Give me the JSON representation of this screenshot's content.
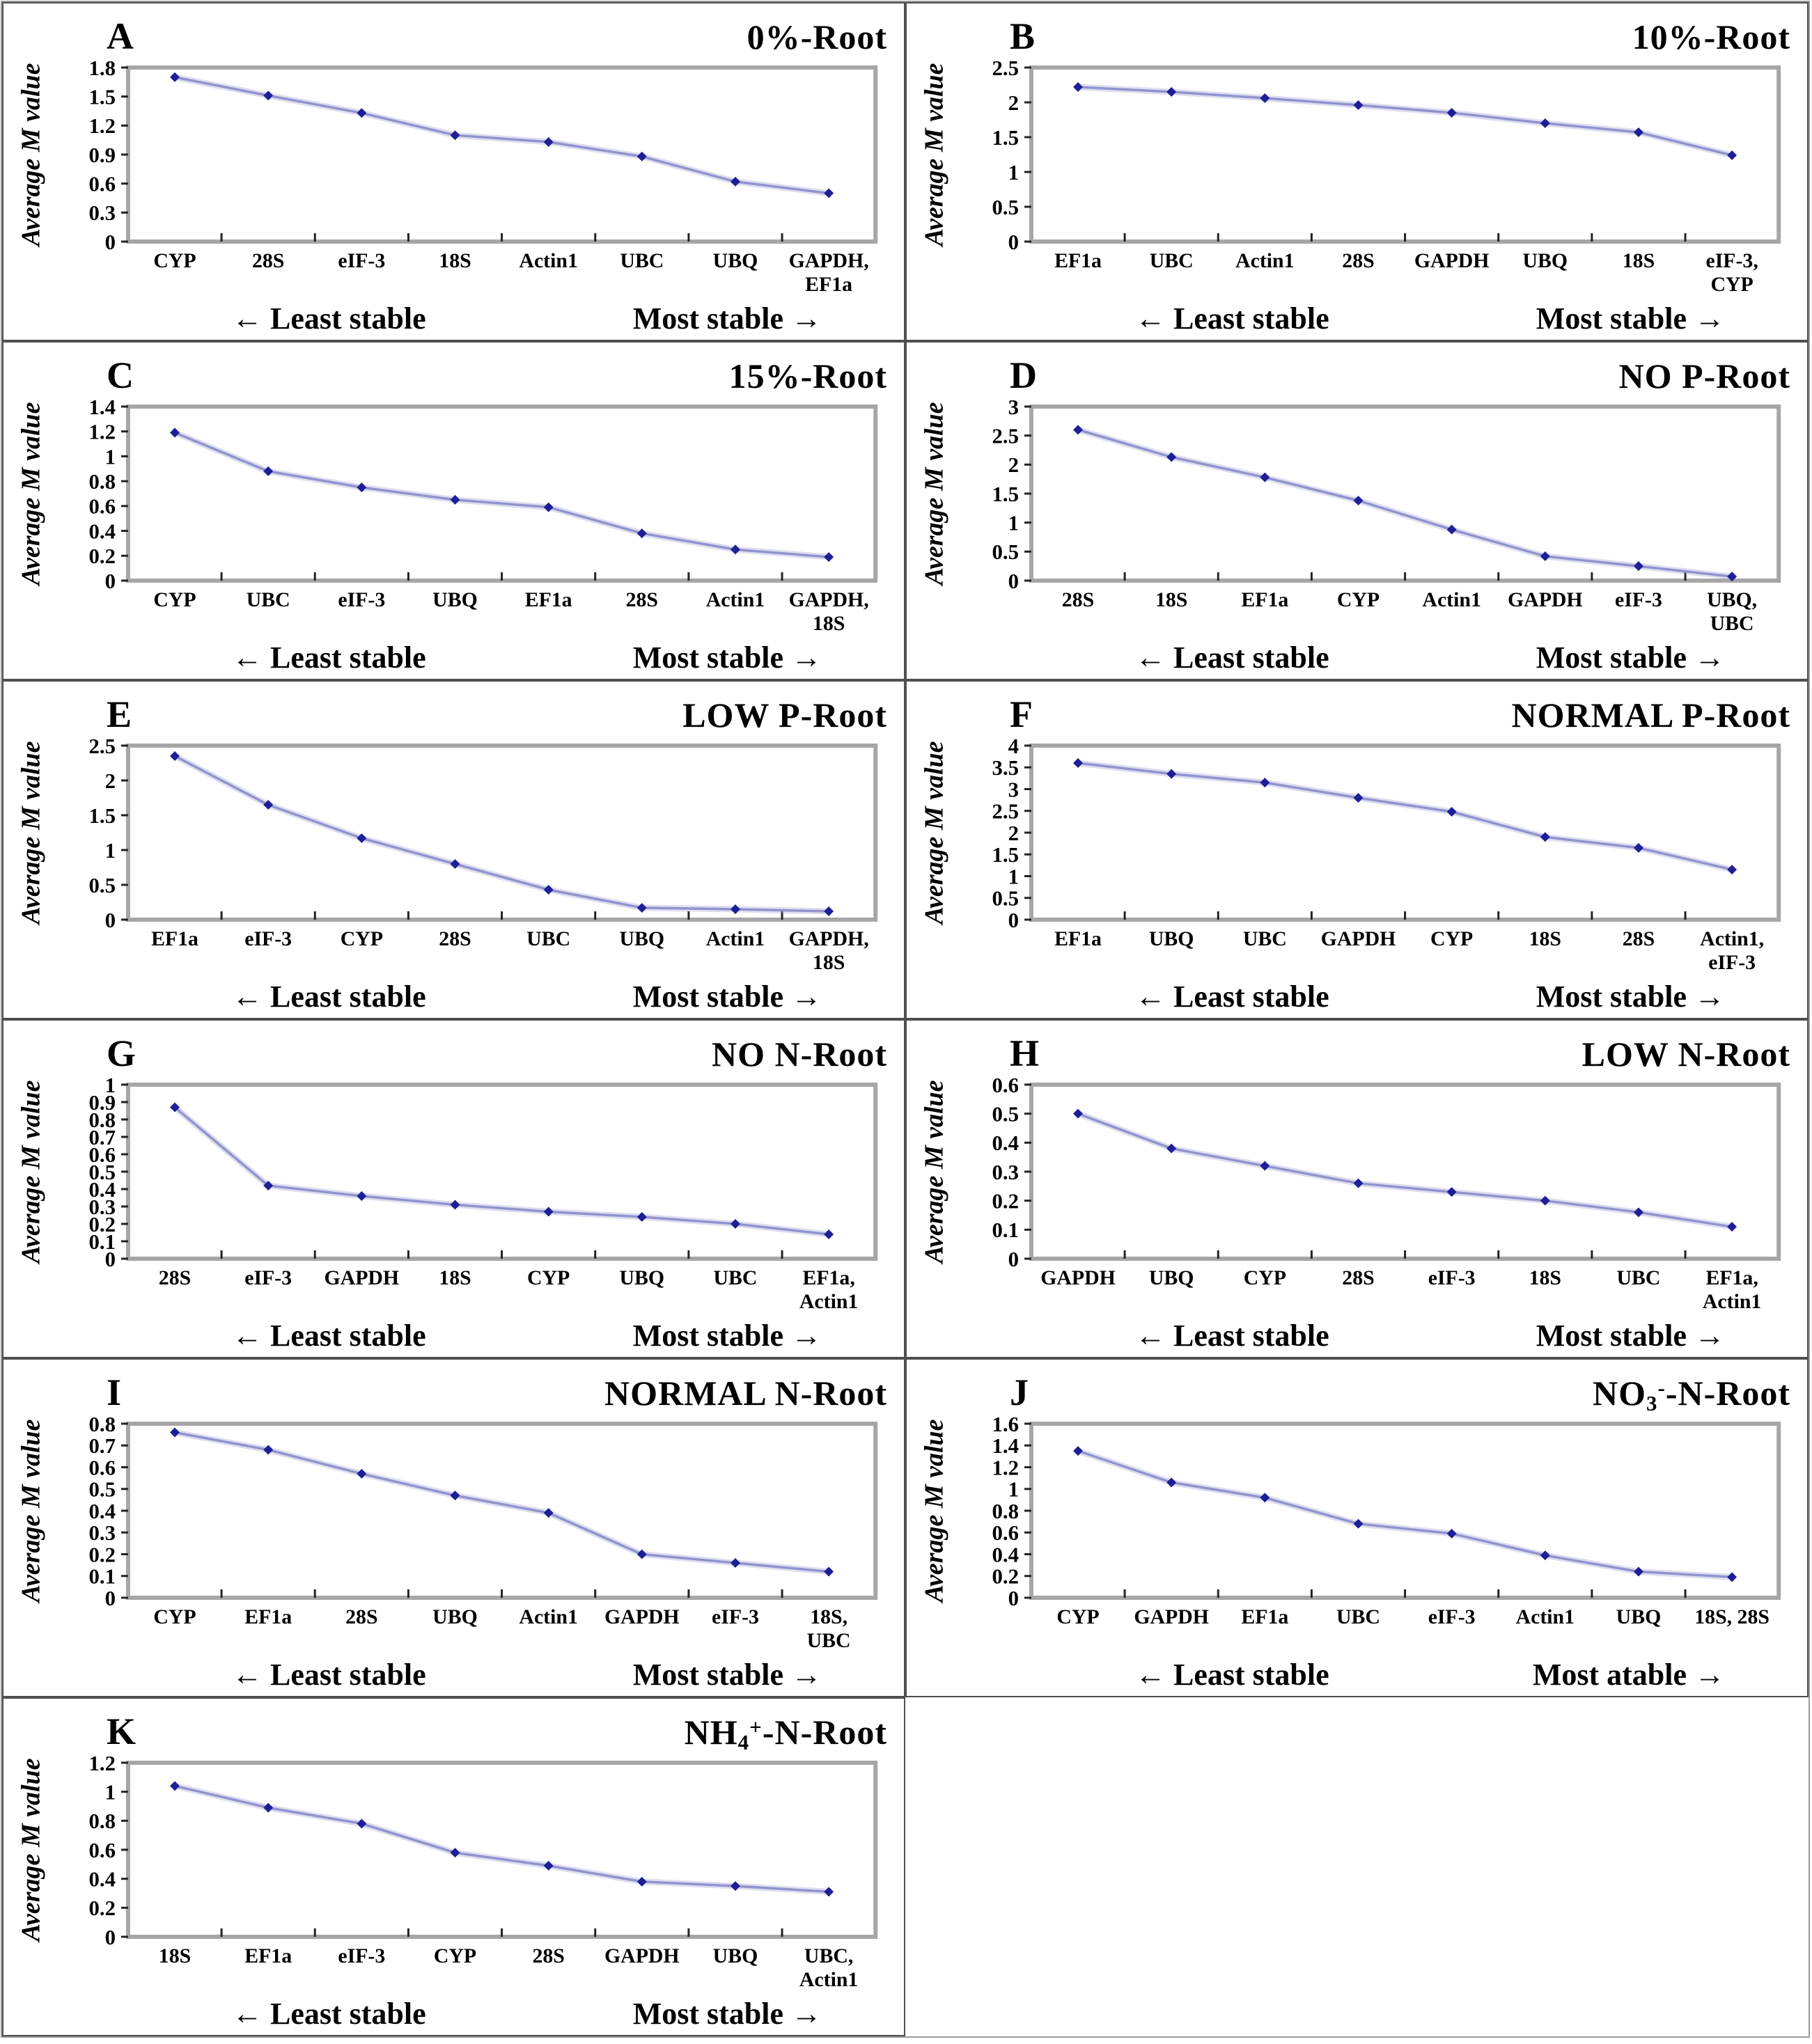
{
  "figure": {
    "y_axis_label": "Average M value",
    "colors": {
      "line": "#9193ce",
      "marker": "#1e1e96",
      "plot_border": "#a6a6a6",
      "panel_border": "#4f4f4f",
      "tick": "#222222",
      "text": "#000000"
    }
  },
  "chart_data": [
    {
      "panel": "A",
      "type": "line",
      "title": "0%-Root",
      "title_segments": [
        {
          "t": "0%-Root"
        }
      ],
      "ylabel": "Average M value",
      "ylim": [
        0,
        1.8
      ],
      "yticks": [
        0,
        0.3,
        0.6,
        0.9,
        1.2,
        1.5,
        1.8
      ],
      "categories": [
        [
          "CYP"
        ],
        [
          "28S"
        ],
        [
          "eIF-3"
        ],
        [
          "18S"
        ],
        [
          "Actin1"
        ],
        [
          "UBC"
        ],
        [
          "UBQ"
        ],
        [
          "GAPDH,",
          "EF1a"
        ]
      ],
      "values": [
        1.7,
        1.51,
        1.33,
        1.1,
        1.03,
        0.88,
        0.62,
        0.5
      ],
      "least_label": "← Least stable",
      "most_label": "Most stable →"
    },
    {
      "panel": "B",
      "type": "line",
      "title": "10%-Root",
      "title_segments": [
        {
          "t": "10%-Root"
        }
      ],
      "ylabel": "Average M value",
      "ylim": [
        0,
        2.5
      ],
      "yticks": [
        0,
        0.5,
        1,
        1.5,
        2,
        2.5
      ],
      "categories": [
        [
          "EF1a"
        ],
        [
          "UBC"
        ],
        [
          "Actin1"
        ],
        [
          "28S"
        ],
        [
          "GAPDH"
        ],
        [
          "UBQ"
        ],
        [
          "18S"
        ],
        [
          "eIF-3,",
          "CYP"
        ]
      ],
      "values": [
        2.22,
        2.15,
        2.06,
        1.96,
        1.85,
        1.7,
        1.57,
        1.24
      ],
      "least_label": "← Least stable",
      "most_label": "Most stable →"
    },
    {
      "panel": "C",
      "type": "line",
      "title": "15%-Root",
      "title_segments": [
        {
          "t": "15%-Root"
        }
      ],
      "ylabel": "Average M value",
      "ylim": [
        0,
        1.4
      ],
      "yticks": [
        0,
        0.2,
        0.4,
        0.6,
        0.8,
        1,
        1.2,
        1.4
      ],
      "categories": [
        [
          "CYP"
        ],
        [
          "UBC"
        ],
        [
          "eIF-3"
        ],
        [
          "UBQ"
        ],
        [
          "EF1a"
        ],
        [
          "28S"
        ],
        [
          "Actin1"
        ],
        [
          "GAPDH,",
          "18S"
        ]
      ],
      "values": [
        1.19,
        0.88,
        0.75,
        0.65,
        0.59,
        0.38,
        0.25,
        0.19
      ],
      "least_label": "← Least stable",
      "most_label": "Most stable →"
    },
    {
      "panel": "D",
      "type": "line",
      "title": "NO P-Root",
      "title_segments": [
        {
          "t": "NO P-Root"
        }
      ],
      "ylabel": "Average M value",
      "ylim": [
        0,
        3
      ],
      "yticks": [
        0,
        0.5,
        1,
        1.5,
        2,
        2.5,
        3
      ],
      "categories": [
        [
          "28S"
        ],
        [
          "18S"
        ],
        [
          "EF1a"
        ],
        [
          "CYP"
        ],
        [
          "Actin1"
        ],
        [
          "GAPDH"
        ],
        [
          "eIF-3"
        ],
        [
          "UBQ,",
          "UBC"
        ]
      ],
      "values": [
        2.6,
        2.13,
        1.78,
        1.38,
        0.88,
        0.42,
        0.25,
        0.07
      ],
      "least_label": "← Least stable",
      "most_label": "Most stable →"
    },
    {
      "panel": "E",
      "type": "line",
      "title": "LOW P-Root",
      "title_segments": [
        {
          "t": "LOW P-Root"
        }
      ],
      "ylabel": "Average M value",
      "ylim": [
        0,
        2.5
      ],
      "yticks": [
        0,
        0.5,
        1,
        1.5,
        2,
        2.5
      ],
      "categories": [
        [
          "EF1a"
        ],
        [
          "eIF-3"
        ],
        [
          "CYP"
        ],
        [
          "28S"
        ],
        [
          "UBC"
        ],
        [
          "UBQ"
        ],
        [
          "Actin1"
        ],
        [
          "GAPDH,",
          "18S"
        ]
      ],
      "values": [
        2.35,
        1.65,
        1.17,
        0.8,
        0.43,
        0.17,
        0.15,
        0.12
      ],
      "least_label": "← Least stable",
      "most_label": "Most stable →"
    },
    {
      "panel": "F",
      "type": "line",
      "title": "NORMAL P-Root",
      "title_segments": [
        {
          "t": "NORMAL P-Root"
        }
      ],
      "ylabel": "Average M value",
      "ylim": [
        0,
        4
      ],
      "yticks": [
        0,
        0.5,
        1,
        1.5,
        2,
        2.5,
        3,
        3.5,
        4
      ],
      "categories": [
        [
          "EF1a"
        ],
        [
          "UBQ"
        ],
        [
          "UBC"
        ],
        [
          "GAPDH"
        ],
        [
          "CYP"
        ],
        [
          "18S"
        ],
        [
          "28S"
        ],
        [
          "Actin1,",
          "eIF-3"
        ]
      ],
      "values": [
        3.6,
        3.35,
        3.15,
        2.8,
        2.48,
        1.9,
        1.65,
        1.15
      ],
      "least_label": "← Least stable",
      "most_label": "Most stable →"
    },
    {
      "panel": "G",
      "type": "line",
      "title": "NO N-Root",
      "title_segments": [
        {
          "t": "NO N-Root"
        }
      ],
      "ylabel": "Average M value",
      "ylim": [
        0,
        1
      ],
      "yticks": [
        0,
        0.1,
        0.2,
        0.3,
        0.4,
        0.5,
        0.6,
        0.7,
        0.8,
        0.9,
        1
      ],
      "categories": [
        [
          "28S"
        ],
        [
          "eIF-3"
        ],
        [
          "GAPDH"
        ],
        [
          "18S"
        ],
        [
          "CYP"
        ],
        [
          "UBQ"
        ],
        [
          "UBC"
        ],
        [
          "EF1a,",
          "Actin1"
        ]
      ],
      "values": [
        0.87,
        0.42,
        0.36,
        0.31,
        0.27,
        0.24,
        0.2,
        0.14
      ],
      "least_label": "← Least stable",
      "most_label": "Most stable →"
    },
    {
      "panel": "H",
      "type": "line",
      "title": "LOW N-Root",
      "title_segments": [
        {
          "t": "LOW N-Root"
        }
      ],
      "ylabel": "Average M value",
      "ylim": [
        0,
        0.6
      ],
      "yticks": [
        0,
        0.1,
        0.2,
        0.3,
        0.4,
        0.5,
        0.6
      ],
      "categories": [
        [
          "GAPDH"
        ],
        [
          "UBQ"
        ],
        [
          "CYP"
        ],
        [
          "28S"
        ],
        [
          "eIF-3"
        ],
        [
          "18S"
        ],
        [
          "UBC"
        ],
        [
          "EF1a,",
          "Actin1"
        ]
      ],
      "values": [
        0.5,
        0.38,
        0.32,
        0.26,
        0.23,
        0.2,
        0.16,
        0.11
      ],
      "least_label": "← Least stable",
      "most_label": "Most stable →"
    },
    {
      "panel": "I",
      "type": "line",
      "title": "NORMAL N-Root",
      "title_segments": [
        {
          "t": "NORMAL N-Root"
        }
      ],
      "ylabel": "Average M value",
      "ylim": [
        0,
        0.8
      ],
      "yticks": [
        0,
        0.1,
        0.2,
        0.3,
        0.4,
        0.5,
        0.6,
        0.7,
        0.8
      ],
      "categories": [
        [
          "CYP"
        ],
        [
          "EF1a"
        ],
        [
          "28S"
        ],
        [
          "UBQ"
        ],
        [
          "Actin1"
        ],
        [
          "GAPDH"
        ],
        [
          "eIF-3"
        ],
        [
          "18S,",
          "UBC"
        ]
      ],
      "values": [
        0.76,
        0.68,
        0.57,
        0.47,
        0.39,
        0.2,
        0.16,
        0.12
      ],
      "least_label": "← Least stable",
      "most_label": "Most stable →"
    },
    {
      "panel": "J",
      "type": "line",
      "title": "NO3--N-Root",
      "title_segments": [
        {
          "t": "NO"
        },
        {
          "sub": "3"
        },
        {
          "sup": "-"
        },
        {
          "t": "-N-Root"
        }
      ],
      "ylabel": "Average M value",
      "ylim": [
        0,
        1.6
      ],
      "yticks": [
        0,
        0.2,
        0.4,
        0.6,
        0.8,
        1,
        1.2,
        1.4,
        1.6
      ],
      "categories": [
        [
          "CYP"
        ],
        [
          "GAPDH"
        ],
        [
          "EF1a"
        ],
        [
          "UBC"
        ],
        [
          "eIF-3"
        ],
        [
          "Actin1"
        ],
        [
          "UBQ"
        ],
        [
          "18S, 28S"
        ]
      ],
      "values": [
        1.35,
        1.06,
        0.92,
        0.68,
        0.59,
        0.39,
        0.24,
        0.19
      ],
      "least_label": "← Least stable",
      "most_label": "Most atable →"
    },
    {
      "panel": "K",
      "type": "line",
      "title": "NH4+-N-Root",
      "title_segments": [
        {
          "t": "NH"
        },
        {
          "sub": "4"
        },
        {
          "sup": "+"
        },
        {
          "t": "-N-Root"
        }
      ],
      "ylabel": "Average M value",
      "ylim": [
        0,
        1.2
      ],
      "yticks": [
        0,
        0.2,
        0.4,
        0.6,
        0.8,
        1,
        1.2
      ],
      "categories": [
        [
          "18S"
        ],
        [
          "EF1a"
        ],
        [
          "eIF-3"
        ],
        [
          "CYP"
        ],
        [
          "28S"
        ],
        [
          "GAPDH"
        ],
        [
          "UBQ"
        ],
        [
          "UBC,",
          "Actin1"
        ]
      ],
      "values": [
        1.04,
        0.89,
        0.78,
        0.58,
        0.49,
        0.38,
        0.35,
        0.31
      ],
      "least_label": "← Least stable",
      "most_label": "Most stable →"
    }
  ]
}
